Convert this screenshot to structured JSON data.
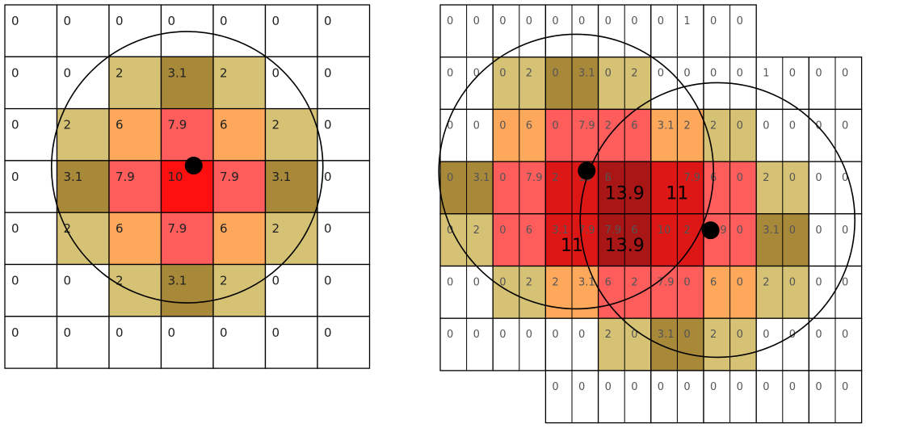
{
  "palette": {
    "white": "#ffffff",
    "tan": "#d6c274",
    "olive": "#a8893a",
    "orange": "#fea85c",
    "salmon": "#ff5c5c",
    "red": "#ff1010",
    "crimson": "#dd1616",
    "maroon": "#a81616",
    "line": "#000000",
    "text": "#222222",
    "faint_text": "#555555"
  },
  "left_grid": {
    "cells": [
      [
        [
          "0",
          "white"
        ],
        [
          "0",
          "white"
        ],
        [
          "0",
          "white"
        ],
        [
          "0",
          "white"
        ],
        [
          "0",
          "white"
        ],
        [
          "0",
          "white"
        ],
        [
          "0",
          "white"
        ]
      ],
      [
        [
          "0",
          "white"
        ],
        [
          "0",
          "white"
        ],
        [
          "2",
          "tan"
        ],
        [
          "3.1",
          "olive"
        ],
        [
          "2",
          "tan"
        ],
        [
          "0",
          "white"
        ],
        [
          "0",
          "white"
        ]
      ],
      [
        [
          "0",
          "white"
        ],
        [
          "2",
          "tan"
        ],
        [
          "6",
          "orange"
        ],
        [
          "7.9",
          "salmon"
        ],
        [
          "6",
          "orange"
        ],
        [
          "2",
          "tan"
        ],
        [
          "0",
          "white"
        ]
      ],
      [
        [
          "0",
          "white"
        ],
        [
          "3.1",
          "olive"
        ],
        [
          "7.9",
          "salmon"
        ],
        [
          "10",
          "red"
        ],
        [
          "7.9",
          "salmon"
        ],
        [
          "3.1",
          "olive"
        ],
        [
          "0",
          "white"
        ]
      ],
      [
        [
          "0",
          "white"
        ],
        [
          "2",
          "tan"
        ],
        [
          "6",
          "orange"
        ],
        [
          "7.9",
          "salmon"
        ],
        [
          "6",
          "orange"
        ],
        [
          "2",
          "tan"
        ],
        [
          "0",
          "white"
        ]
      ],
      [
        [
          "0",
          "white"
        ],
        [
          "0",
          "white"
        ],
        [
          "2",
          "tan"
        ],
        [
          "3.1",
          "olive"
        ],
        [
          "2",
          "tan"
        ],
        [
          "0",
          "white"
        ],
        [
          "0",
          "white"
        ]
      ],
      [
        [
          "0",
          "white"
        ],
        [
          "0",
          "white"
        ],
        [
          "0",
          "white"
        ],
        [
          "0",
          "white"
        ],
        [
          "0",
          "white"
        ],
        [
          "0",
          "white"
        ],
        [
          "0",
          "white"
        ]
      ]
    ]
  },
  "right_grid": {
    "cells": [
      [
        [
          "",
          "white",
          "0",
          "0"
        ],
        [
          "",
          "white",
          "0",
          "0"
        ],
        [
          "",
          "white",
          "0",
          "0"
        ],
        [
          "",
          "white",
          "0",
          "0"
        ],
        [
          "",
          "white",
          "0",
          "1"
        ],
        [
          "",
          "white",
          "0",
          "0"
        ]
      ],
      [
        [
          "",
          "white",
          "0",
          "0"
        ],
        [
          "",
          "tan",
          "0",
          "2"
        ],
        [
          "",
          "olive",
          "0",
          "3.1"
        ],
        [
          "",
          "tan",
          "0",
          "2"
        ],
        [
          "",
          "white",
          "0",
          "0"
        ],
        [
          "",
          "white",
          "0",
          "0"
        ],
        [
          "",
          "white",
          "1",
          "0"
        ],
        [
          "",
          "white",
          "0",
          "0"
        ]
      ],
      [
        [
          "",
          "white",
          "0",
          "0"
        ],
        [
          "",
          "orange",
          "0",
          "6"
        ],
        [
          "",
          "salmon",
          "0",
          "7.9"
        ],
        [
          "",
          "salmon",
          "2",
          "6"
        ],
        [
          "",
          "orange",
          "3.1",
          "2"
        ],
        [
          "",
          "tan",
          "2",
          "0"
        ],
        [
          "",
          "white",
          "0",
          "0"
        ],
        [
          "",
          "white",
          "0",
          "0"
        ]
      ],
      [
        [
          "",
          "olive",
          "0",
          "3.1"
        ],
        [
          "",
          "salmon",
          "0",
          "7.9"
        ],
        [
          "",
          "crimson",
          "2",
          "10"
        ],
        [
          "13.9",
          "maroon",
          "6",
          ""
        ],
        [
          "11",
          "crimson",
          "",
          "7.9"
        ],
        [
          "",
          "salmon",
          "6",
          "0"
        ],
        [
          "",
          "tan",
          "2",
          "0"
        ],
        [
          "",
          "white",
          "0",
          "0"
        ]
      ],
      [
        [
          "",
          "tan",
          "0",
          "2"
        ],
        [
          "",
          "salmon",
          "0",
          "6"
        ],
        [
          "11",
          "crimson",
          "3.1",
          "7.9"
        ],
        [
          "13.9",
          "maroon",
          "7.9",
          "6"
        ],
        [
          "",
          "crimson",
          "10",
          "2"
        ],
        [
          "",
          "salmon",
          "7.9",
          "0"
        ],
        [
          "",
          "olive",
          "3.1",
          "0"
        ],
        [
          "",
          "white",
          "0",
          "0"
        ]
      ],
      [
        [
          "",
          "white",
          "0",
          "0"
        ],
        [
          "",
          "tan",
          "0",
          "2"
        ],
        [
          "",
          "orange",
          "2",
          "3.1"
        ],
        [
          "",
          "salmon",
          "6",
          "2"
        ],
        [
          "",
          "salmon",
          "7.9",
          "0"
        ],
        [
          "",
          "orange",
          "6",
          "0"
        ],
        [
          "",
          "tan",
          "2",
          "0"
        ],
        [
          "",
          "white",
          "0",
          "0"
        ]
      ],
      [
        [
          "",
          "white",
          "0",
          "0"
        ],
        [
          "",
          "white",
          "0",
          "0"
        ],
        [
          "",
          "white",
          "0",
          "0"
        ],
        [
          "",
          "tan",
          "2",
          "0"
        ],
        [
          "",
          "olive",
          "3.1",
          "0"
        ],
        [
          "",
          "tan",
          "2",
          "0"
        ],
        [
          "",
          "white",
          "0",
          "0"
        ],
        [
          "",
          "white",
          "0",
          "0"
        ]
      ],
      [
        [
          "",
          "white",
          "0",
          "0"
        ],
        [
          "",
          "white",
          "0",
          "0"
        ],
        [
          "",
          "white",
          "0",
          "0"
        ],
        [
          "",
          "white",
          "0",
          "0"
        ],
        [
          "",
          "white",
          "0",
          "0"
        ],
        [
          "",
          "white",
          "0",
          "0"
        ]
      ]
    ]
  }
}
